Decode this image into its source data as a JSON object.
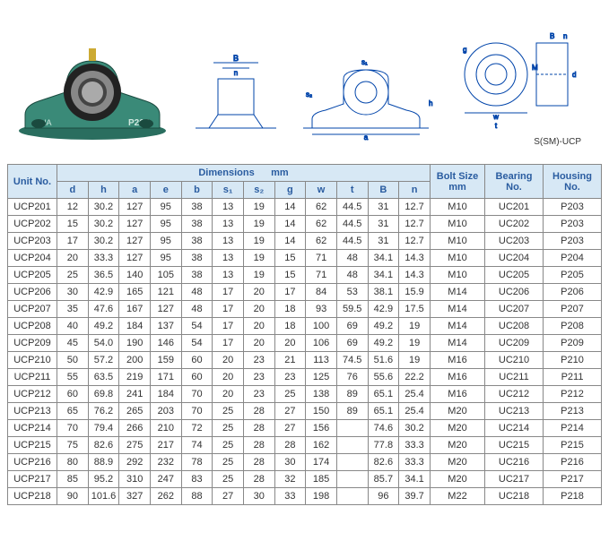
{
  "diagram": {
    "model_label": "P205",
    "brand_label": "NA",
    "diagram3_caption": "S(SM)-UCP",
    "dim_labels": [
      "B",
      "n",
      "b",
      "e",
      "a",
      "s₁",
      "s₂",
      "h",
      "g",
      "w",
      "M",
      "d",
      "t"
    ]
  },
  "table": {
    "headers": {
      "unit": "Unit No.",
      "dimensions": "Dimensions",
      "dim_unit": "mm",
      "bolt": "Bolt Size",
      "bolt_unit": "mm",
      "bearing": "Bearing No.",
      "housing": "Housing No."
    },
    "dim_cols": [
      "d",
      "h",
      "a",
      "e",
      "b",
      "s₁",
      "s₂",
      "g",
      "w",
      "t",
      "B",
      "n"
    ],
    "rows": [
      {
        "unit": "UCP201",
        "d": "12",
        "h": "30.2",
        "a": "127",
        "e": "95",
        "b": "38",
        "s1": "13",
        "s2": "19",
        "g": "14",
        "w": "62",
        "t": "44.5",
        "B": "31",
        "n": "12.7",
        "bolt": "M10",
        "bearing": "UC201",
        "housing": "P203"
      },
      {
        "unit": "UCP202",
        "d": "15",
        "h": "30.2",
        "a": "127",
        "e": "95",
        "b": "38",
        "s1": "13",
        "s2": "19",
        "g": "14",
        "w": "62",
        "t": "44.5",
        "B": "31",
        "n": "12.7",
        "bolt": "M10",
        "bearing": "UC202",
        "housing": "P203"
      },
      {
        "unit": "UCP203",
        "d": "17",
        "h": "30.2",
        "a": "127",
        "e": "95",
        "b": "38",
        "s1": "13",
        "s2": "19",
        "g": "14",
        "w": "62",
        "t": "44.5",
        "B": "31",
        "n": "12.7",
        "bolt": "M10",
        "bearing": "UC203",
        "housing": "P203"
      },
      {
        "unit": "UCP204",
        "d": "20",
        "h": "33.3",
        "a": "127",
        "e": "95",
        "b": "38",
        "s1": "13",
        "s2": "19",
        "g": "15",
        "w": "71",
        "t": "48",
        "B": "34.1",
        "n": "14.3",
        "bolt": "M10",
        "bearing": "UC204",
        "housing": "P204"
      },
      {
        "unit": "UCP205",
        "d": "25",
        "h": "36.5",
        "a": "140",
        "e": "105",
        "b": "38",
        "s1": "13",
        "s2": "19",
        "g": "15",
        "w": "71",
        "t": "48",
        "B": "34.1",
        "n": "14.3",
        "bolt": "M10",
        "bearing": "UC205",
        "housing": "P205"
      },
      {
        "unit": "UCP206",
        "d": "30",
        "h": "42.9",
        "a": "165",
        "e": "121",
        "b": "48",
        "s1": "17",
        "s2": "20",
        "g": "17",
        "w": "84",
        "t": "53",
        "B": "38.1",
        "n": "15.9",
        "bolt": "M14",
        "bearing": "UC206",
        "housing": "P206"
      },
      {
        "unit": "UCP207",
        "d": "35",
        "h": "47.6",
        "a": "167",
        "e": "127",
        "b": "48",
        "s1": "17",
        "s2": "20",
        "g": "18",
        "w": "93",
        "t": "59.5",
        "B": "42.9",
        "n": "17.5",
        "bolt": "M14",
        "bearing": "UC207",
        "housing": "P207"
      },
      {
        "unit": "UCP208",
        "d": "40",
        "h": "49.2",
        "a": "184",
        "e": "137",
        "b": "54",
        "s1": "17",
        "s2": "20",
        "g": "18",
        "w": "100",
        "t": "69",
        "B": "49.2",
        "n": "19",
        "bolt": "M14",
        "bearing": "UC208",
        "housing": "P208"
      },
      {
        "unit": "UCP209",
        "d": "45",
        "h": "54.0",
        "a": "190",
        "e": "146",
        "b": "54",
        "s1": "17",
        "s2": "20",
        "g": "20",
        "w": "106",
        "t": "69",
        "B": "49.2",
        "n": "19",
        "bolt": "M14",
        "bearing": "UC209",
        "housing": "P209"
      },
      {
        "unit": "UCP210",
        "d": "50",
        "h": "57.2",
        "a": "200",
        "e": "159",
        "b": "60",
        "s1": "20",
        "s2": "23",
        "g": "21",
        "w": "113",
        "t": "74.5",
        "B": "51.6",
        "n": "19",
        "bolt": "M16",
        "bearing": "UC210",
        "housing": "P210"
      },
      {
        "unit": "UCP211",
        "d": "55",
        "h": "63.5",
        "a": "219",
        "e": "171",
        "b": "60",
        "s1": "20",
        "s2": "23",
        "g": "23",
        "w": "125",
        "t": "76",
        "B": "55.6",
        "n": "22.2",
        "bolt": "M16",
        "bearing": "UC211",
        "housing": "P211"
      },
      {
        "unit": "UCP212",
        "d": "60",
        "h": "69.8",
        "a": "241",
        "e": "184",
        "b": "70",
        "s1": "20",
        "s2": "23",
        "g": "25",
        "w": "138",
        "t": "89",
        "B": "65.1",
        "n": "25.4",
        "bolt": "M16",
        "bearing": "UC212",
        "housing": "P212"
      },
      {
        "unit": "UCP213",
        "d": "65",
        "h": "76.2",
        "a": "265",
        "e": "203",
        "b": "70",
        "s1": "25",
        "s2": "28",
        "g": "27",
        "w": "150",
        "t": "89",
        "B": "65.1",
        "n": "25.4",
        "bolt": "M20",
        "bearing": "UC213",
        "housing": "P213"
      },
      {
        "unit": "UCP214",
        "d": "70",
        "h": "79.4",
        "a": "266",
        "e": "210",
        "b": "72",
        "s1": "25",
        "s2": "28",
        "g": "27",
        "w": "156",
        "t": "",
        "B": "74.6",
        "n": "30.2",
        "bolt": "M20",
        "bearing": "UC214",
        "housing": "P214"
      },
      {
        "unit": "UCP215",
        "d": "75",
        "h": "82.6",
        "a": "275",
        "e": "217",
        "b": "74",
        "s1": "25",
        "s2": "28",
        "g": "28",
        "w": "162",
        "t": "",
        "B": "77.8",
        "n": "33.3",
        "bolt": "M20",
        "bearing": "UC215",
        "housing": "P215"
      },
      {
        "unit": "UCP216",
        "d": "80",
        "h": "88.9",
        "a": "292",
        "e": "232",
        "b": "78",
        "s1": "25",
        "s2": "28",
        "g": "30",
        "w": "174",
        "t": "",
        "B": "82.6",
        "n": "33.3",
        "bolt": "M20",
        "bearing": "UC216",
        "housing": "P216"
      },
      {
        "unit": "UCP217",
        "d": "85",
        "h": "95.2",
        "a": "310",
        "e": "247",
        "b": "83",
        "s1": "25",
        "s2": "28",
        "g": "32",
        "w": "185",
        "t": "",
        "B": "85.7",
        "n": "34.1",
        "bolt": "M20",
        "bearing": "UC217",
        "housing": "P217"
      },
      {
        "unit": "UCP218",
        "d": "90",
        "h": "101.6",
        "a": "327",
        "e": "262",
        "b": "88",
        "s1": "27",
        "s2": "30",
        "g": "33",
        "w": "198",
        "t": "",
        "B": "96",
        "n": "39.7",
        "bolt": "M22",
        "bearing": "UC218",
        "housing": "P218"
      }
    ]
  },
  "colors": {
    "header_bg": "#d7e8f5",
    "header_text": "#2a5ca0",
    "border": "#888888",
    "body_text": "#333333",
    "diagram_line": "#0044aa",
    "product_body": "#2a6e5f"
  }
}
